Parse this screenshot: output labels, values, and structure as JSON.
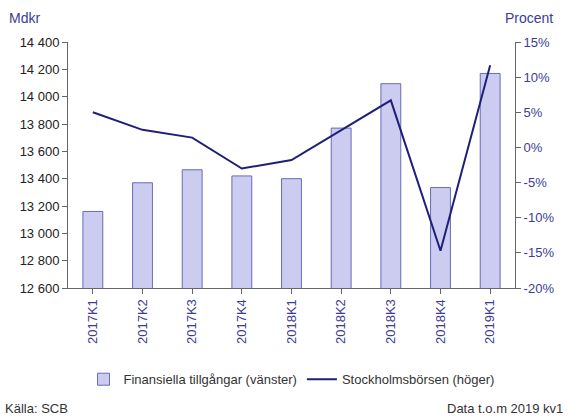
{
  "chart_data": {
    "type": "bar",
    "categories": [
      "2017K1",
      "2017K2",
      "2017K3",
      "2017K4",
      "2018K1",
      "2018K2",
      "2018K3",
      "2018K4",
      "2019K1"
    ],
    "series": [
      {
        "name": "Finansiella tillgångar (vänster)",
        "type": "bar",
        "color": "#ccccf0",
        "values": [
          13160,
          13370,
          13465,
          13420,
          13400,
          13770,
          14095,
          13335,
          14170
        ]
      },
      {
        "name": "Stockholmsbörsen (höger)",
        "type": "line",
        "axis": "y2",
        "color": "#1f1f7a",
        "values": [
          5.0,
          2.5,
          1.4,
          -3.0,
          -1.8,
          2.5,
          6.7,
          -14.7,
          11.7
        ]
      }
    ],
    "ylabel": "Mdkr",
    "y2label": "Procent",
    "ylim": [
      12600,
      14400
    ],
    "yticks": [
      {
        "value": 12600,
        "label": "12 600"
      },
      {
        "value": 12800,
        "label": "12 800"
      },
      {
        "value": 13000,
        "label": "13 000"
      },
      {
        "value": 13200,
        "label": "13 200"
      },
      {
        "value": 13400,
        "label": "13 400"
      },
      {
        "value": 13600,
        "label": "13 600"
      },
      {
        "value": 13800,
        "label": "13 800"
      },
      {
        "value": 14000,
        "label": "14 000"
      },
      {
        "value": 14200,
        "label": "14 200"
      },
      {
        "value": 14400,
        "label": "14 400"
      }
    ],
    "y2lim": [
      -20,
      15
    ],
    "y2ticks": [
      {
        "value": -20,
        "label": "-20%"
      },
      {
        "value": -15,
        "label": "-15%"
      },
      {
        "value": -10,
        "label": "-10%"
      },
      {
        "value": -5,
        "label": "-5%"
      },
      {
        "value": 0,
        "label": "0%"
      },
      {
        "value": 5,
        "label": "5%"
      },
      {
        "value": 10,
        "label": "10%"
      },
      {
        "value": 15,
        "label": "15%"
      }
    ],
    "grid": false,
    "legend": "bottom",
    "annotations": [
      {
        "text": "Källa: SCB",
        "position": "left"
      },
      {
        "text": "Data t.o.m 2019 kv1",
        "position": "right"
      }
    ]
  }
}
